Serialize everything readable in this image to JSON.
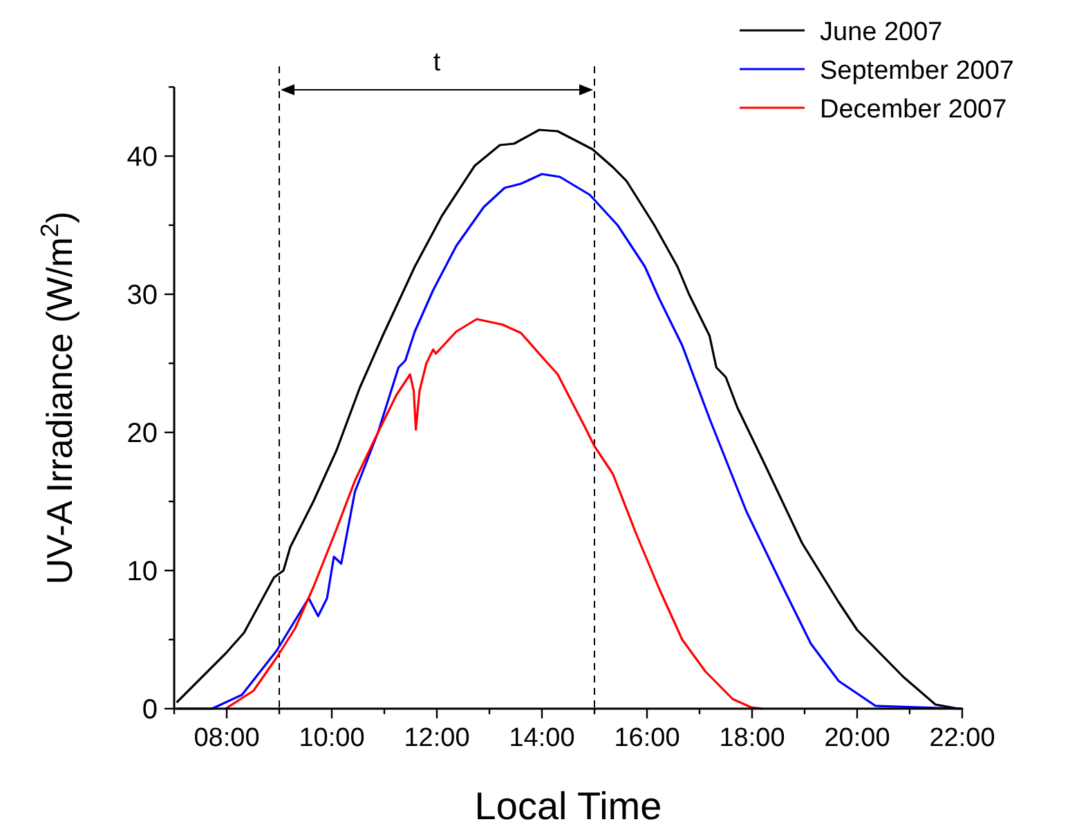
{
  "chart_data": {
    "type": "line",
    "xlabel": "Local Time",
    "ylabel": "UV-A Irradiance (W/m$^{2}$)",
    "xlim": [
      7,
      22
    ],
    "ylim": [
      0,
      45
    ],
    "xticks": [
      {
        "value": 7,
        "label": null
      },
      {
        "value": 8,
        "label": "08:00"
      },
      {
        "value": 9,
        "label": null
      },
      {
        "value": 10,
        "label": "10:00"
      },
      {
        "value": 11,
        "label": null
      },
      {
        "value": 12,
        "label": "12:00"
      },
      {
        "value": 13,
        "label": null
      },
      {
        "value": 14,
        "label": "14:00"
      },
      {
        "value": 15,
        "label": null
      },
      {
        "value": 16,
        "label": "16:00"
      },
      {
        "value": 17,
        "label": null
      },
      {
        "value": 18,
        "label": "18:00"
      },
      {
        "value": 19,
        "label": null
      },
      {
        "value": 20,
        "label": "20:00"
      },
      {
        "value": 21,
        "label": null
      },
      {
        "value": 22,
        "label": "22:00"
      }
    ],
    "yticks": [
      0,
      {
        "value": 5,
        "label": null
      },
      10,
      {
        "value": 15,
        "label": null
      },
      20,
      {
        "value": 25,
        "label": null
      },
      30,
      {
        "value": 35,
        "label": null
      },
      40,
      {
        "value": 45,
        "label": null
      }
    ],
    "grid": false,
    "legend": "top right",
    "marker": "none",
    "line_style": "solid",
    "ref_lines": [
      {
        "axis": "x",
        "value": 9,
        "color": "#000000",
        "line_style": "dashed"
      },
      {
        "axis": "x",
        "value": 15,
        "color": "#000000",
        "line_style": "dashed"
      }
    ],
    "annotations": [
      "t"
    ],
    "series": [
      {
        "name": "June 2007",
        "color": "#000000",
        "x": [
          7.06,
          7.98,
          8.33,
          8.9,
          9.08,
          9.21,
          9.65,
          10.09,
          10.53,
          10.97,
          11.58,
          12.1,
          12.72,
          13.2,
          13.47,
          13.95,
          14.3,
          14.96,
          15.35,
          15.61,
          16.14,
          16.58,
          16.8,
          17.19,
          17.32,
          17.5,
          17.72,
          18.24,
          18.95,
          19.65,
          20.0,
          20.88,
          21.49,
          21.93
        ],
        "values": [
          0.5,
          4.0,
          5.5,
          9.5,
          10.0,
          11.7,
          15.0,
          18.7,
          23.2,
          27.0,
          32.0,
          35.7,
          39.3,
          40.8,
          40.9,
          41.9,
          41.8,
          40.5,
          39.2,
          38.2,
          35.0,
          32.0,
          30.0,
          27.0,
          24.7,
          24.0,
          21.8,
          17.7,
          12.0,
          7.7,
          5.7,
          2.3,
          0.3,
          0.0
        ]
      },
      {
        "name": "September 2007",
        "color": "#0000ff",
        "x": [
          7.06,
          7.72,
          8.29,
          8.95,
          9.56,
          9.74,
          9.91,
          10.04,
          10.18,
          10.44,
          10.88,
          11.27,
          11.4,
          11.58,
          11.93,
          12.37,
          12.89,
          13.29,
          13.6,
          14.0,
          14.34,
          14.91,
          15.44,
          15.96,
          16.23,
          16.67,
          17.19,
          17.89,
          18.6,
          19.12,
          19.65,
          20.35,
          22.0
        ],
        "values": [
          0,
          0,
          1.0,
          4.2,
          8.0,
          6.7,
          8.0,
          11.0,
          10.5,
          15.7,
          20.0,
          24.7,
          25.2,
          27.3,
          30.3,
          33.5,
          36.3,
          37.7,
          38.0,
          38.7,
          38.5,
          37.2,
          35.0,
          32.0,
          29.7,
          26.3,
          21.0,
          14.3,
          8.7,
          4.7,
          2.0,
          0.2,
          0
        ]
      },
      {
        "name": "December 2007",
        "color": "#ff0000",
        "x": [
          7.98,
          8.51,
          8.95,
          9.3,
          9.65,
          10.09,
          10.44,
          10.88,
          11.23,
          11.49,
          11.56,
          11.6,
          11.67,
          11.8,
          11.93,
          11.98,
          12.37,
          12.76,
          13.25,
          13.6,
          14.04,
          14.3,
          14.83,
          15.0,
          15.35,
          15.79,
          16.23,
          16.67,
          17.11,
          17.63,
          17.98,
          18.2
        ],
        "values": [
          0,
          1.3,
          3.7,
          5.8,
          8.8,
          13.0,
          16.5,
          20.0,
          22.7,
          24.2,
          23.0,
          20.2,
          23.0,
          25.0,
          26.0,
          25.7,
          27.3,
          28.2,
          27.8,
          27.2,
          25.3,
          24.2,
          20.3,
          19.0,
          17.0,
          12.7,
          8.7,
          5.0,
          2.7,
          0.7,
          0.1,
          0
        ]
      }
    ]
  }
}
